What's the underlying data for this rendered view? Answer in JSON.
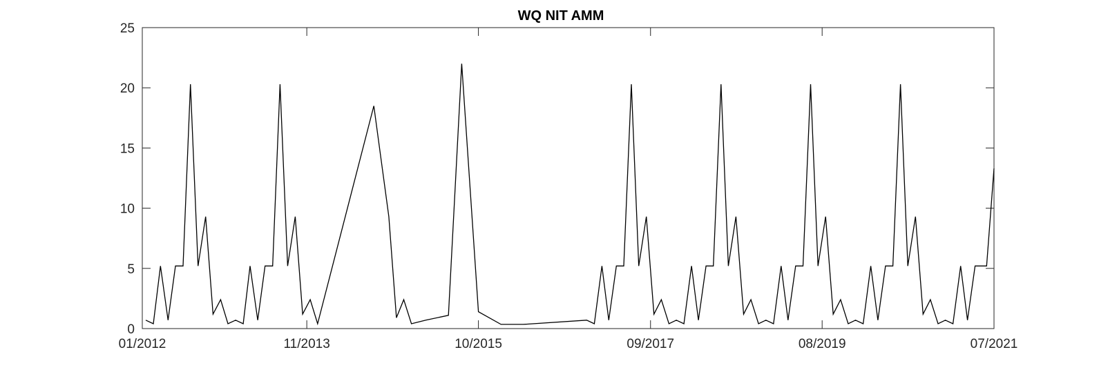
{
  "chart_data": {
    "type": "line",
    "title": "WQ NIT AMM",
    "xlabel": "",
    "ylabel": "",
    "x_axis": {
      "type": "date",
      "range": [
        "2012-01-01",
        "2021-07-01"
      ],
      "ticks": [
        "2012-01-01",
        "2013-11-01",
        "2015-10-01",
        "2017-09-01",
        "2019-08-01",
        "2021-07-01"
      ],
      "tick_labels": [
        "01/2012",
        "11/2013",
        "10/2015",
        "09/2017",
        "08/2019",
        "07/2021"
      ]
    },
    "y_axis": {
      "range": [
        0,
        25
      ],
      "ticks": [
        0,
        5,
        10,
        15,
        20,
        25
      ],
      "tick_labels": [
        "0",
        "5",
        "10",
        "15",
        "20",
        "25"
      ]
    },
    "grid": false,
    "legend": "none",
    "line_color": "#000000",
    "series": [
      {
        "points": [
          [
            "2012-01-15",
            0.7
          ],
          [
            "2012-02-15",
            0.4
          ],
          [
            "2012-03-15",
            5.2
          ],
          [
            "2012-04-15",
            0.7
          ],
          [
            "2012-05-15",
            5.2
          ],
          [
            "2012-06-15",
            5.2
          ],
          [
            "2012-07-15",
            20.3
          ],
          [
            "2012-08-15",
            5.2
          ],
          [
            "2012-09-15",
            9.3
          ],
          [
            "2012-10-15",
            1.2
          ],
          [
            "2012-11-15",
            2.4
          ],
          [
            "2012-12-15",
            0.4
          ],
          [
            "2013-01-15",
            0.7
          ],
          [
            "2013-02-15",
            0.4
          ],
          [
            "2013-03-15",
            5.2
          ],
          [
            "2013-04-15",
            0.7
          ],
          [
            "2013-05-15",
            5.2
          ],
          [
            "2013-06-15",
            5.2
          ],
          [
            "2013-07-15",
            20.3
          ],
          [
            "2013-08-15",
            5.2
          ],
          [
            "2013-09-15",
            9.3
          ],
          [
            "2013-10-15",
            1.2
          ],
          [
            "2013-11-15",
            2.4
          ],
          [
            "2013-12-15",
            0.4
          ],
          [
            "2014-08-01",
            18.5
          ],
          [
            "2014-10-01",
            9.3
          ],
          [
            "2014-11-01",
            0.9
          ],
          [
            "2014-12-01",
            2.4
          ],
          [
            "2015-01-01",
            0.4
          ],
          [
            "2015-03-01",
            0.7
          ],
          [
            "2015-06-01",
            1.1
          ],
          [
            "2015-07-25",
            22.0
          ],
          [
            "2015-10-01",
            1.4
          ],
          [
            "2016-01-01",
            0.35
          ],
          [
            "2016-04-01",
            0.35
          ],
          [
            "2016-12-15",
            0.7
          ],
          [
            "2017-01-15",
            0.4
          ],
          [
            "2017-02-15",
            5.2
          ],
          [
            "2017-03-15",
            0.7
          ],
          [
            "2017-04-15",
            5.2
          ],
          [
            "2017-05-15",
            5.2
          ],
          [
            "2017-06-15",
            20.3
          ],
          [
            "2017-07-15",
            5.2
          ],
          [
            "2017-08-15",
            9.3
          ],
          [
            "2017-09-15",
            1.2
          ],
          [
            "2017-10-15",
            2.4
          ],
          [
            "2017-11-15",
            0.4
          ],
          [
            "2017-12-15",
            0.7
          ],
          [
            "2018-01-15",
            0.4
          ],
          [
            "2018-02-15",
            5.2
          ],
          [
            "2018-03-15",
            0.7
          ],
          [
            "2018-04-15",
            5.2
          ],
          [
            "2018-05-15",
            5.2
          ],
          [
            "2018-06-15",
            20.3
          ],
          [
            "2018-07-15",
            5.2
          ],
          [
            "2018-08-15",
            9.3
          ],
          [
            "2018-09-15",
            1.2
          ],
          [
            "2018-10-15",
            2.4
          ],
          [
            "2018-11-15",
            0.4
          ],
          [
            "2018-12-15",
            0.7
          ],
          [
            "2019-01-15",
            0.4
          ],
          [
            "2019-02-15",
            5.2
          ],
          [
            "2019-03-15",
            0.7
          ],
          [
            "2019-04-15",
            5.2
          ],
          [
            "2019-05-15",
            5.2
          ],
          [
            "2019-06-15",
            20.3
          ],
          [
            "2019-07-15",
            5.2
          ],
          [
            "2019-08-15",
            9.3
          ],
          [
            "2019-09-15",
            1.2
          ],
          [
            "2019-10-15",
            2.4
          ],
          [
            "2019-11-15",
            0.4
          ],
          [
            "2019-12-15",
            0.7
          ],
          [
            "2020-01-15",
            0.4
          ],
          [
            "2020-02-15",
            5.2
          ],
          [
            "2020-03-15",
            0.7
          ],
          [
            "2020-04-15",
            5.2
          ],
          [
            "2020-05-15",
            5.2
          ],
          [
            "2020-06-15",
            20.3
          ],
          [
            "2020-07-15",
            5.2
          ],
          [
            "2020-08-15",
            9.3
          ],
          [
            "2020-09-15",
            1.2
          ],
          [
            "2020-10-15",
            2.4
          ],
          [
            "2020-11-15",
            0.4
          ],
          [
            "2020-12-15",
            0.7
          ],
          [
            "2021-01-15",
            0.4
          ],
          [
            "2021-02-15",
            5.2
          ],
          [
            "2021-03-15",
            0.7
          ],
          [
            "2021-04-15",
            5.2
          ],
          [
            "2021-06-01",
            5.2
          ],
          [
            "2021-07-01",
            13.3
          ]
        ]
      }
    ]
  }
}
